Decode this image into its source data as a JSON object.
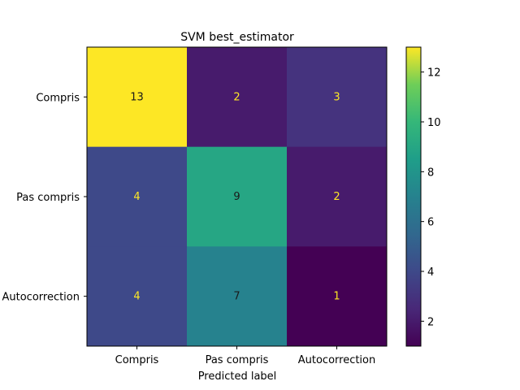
{
  "chart_data": {
    "type": "heatmap",
    "title": "SVM best_estimator",
    "xlabel": "Predicted label",
    "ylabel": "",
    "x_categories": [
      "Compris",
      "Pas compris",
      "Autocorrection"
    ],
    "y_categories": [
      "Compris",
      "Pas compris",
      "Autocorrection"
    ],
    "matrix": [
      [
        13,
        2,
        3
      ],
      [
        4,
        9,
        2
      ],
      [
        4,
        7,
        1
      ]
    ],
    "colormap": "viridis",
    "vmin": 1,
    "vmax": 13,
    "colorbar_ticks": [
      2,
      4,
      6,
      8,
      10,
      12
    ],
    "text_color_light": "#fde725",
    "text_color_dark": "#1a1a1a"
  }
}
